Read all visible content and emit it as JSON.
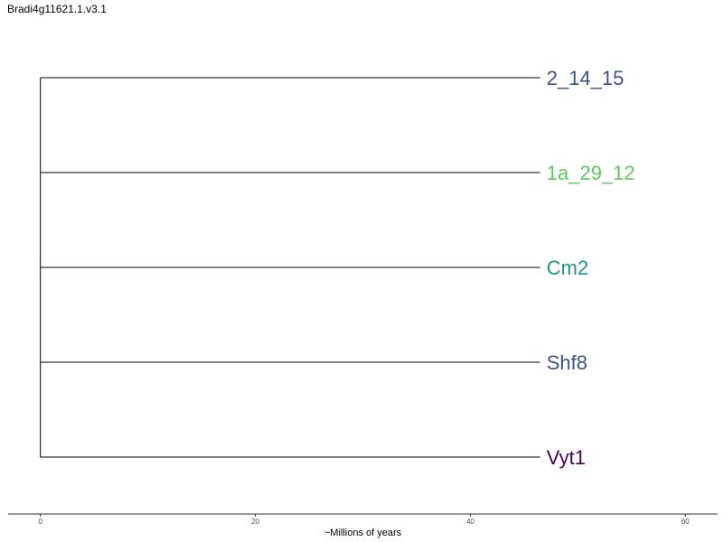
{
  "title": "Bradi4g11621.1.v3.1",
  "chart_data": {
    "type": "dendrogram",
    "title": "Bradi4g11621.1.v3.1",
    "xlabel": "~Millions of years",
    "xlim": [
      -3,
      63
    ],
    "xticks": [
      0,
      20,
      40,
      60
    ],
    "root_x": 0,
    "tips": [
      {
        "label": "2_14_15",
        "branch_end": 46.5,
        "color": "#3b528b"
      },
      {
        "label": "1a_29_12",
        "branch_end": 46.5,
        "color": "#5ec962"
      },
      {
        "label": "Cm2",
        "branch_end": 46.5,
        "color": "#21918c"
      },
      {
        "label": "Shf8",
        "branch_end": 46.5,
        "color": "#3b528b"
      },
      {
        "label": "Vyt1",
        "branch_end": 46.5,
        "color": "#440154"
      }
    ],
    "grid": false
  }
}
